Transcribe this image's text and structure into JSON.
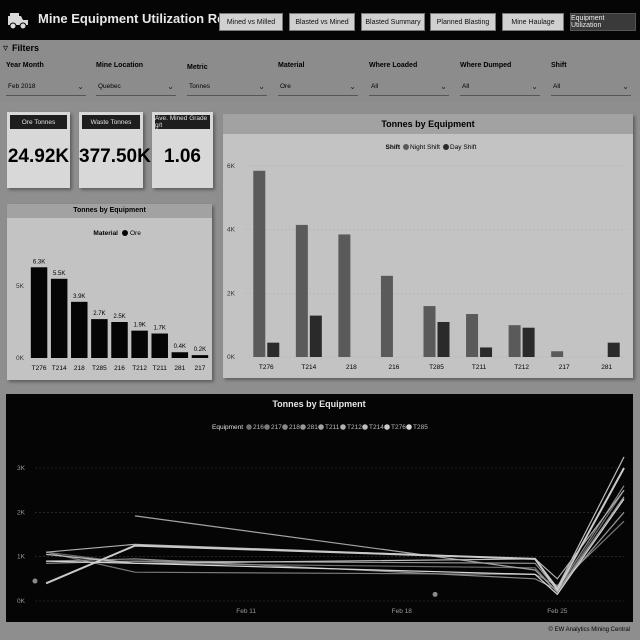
{
  "header": {
    "title": "Mine Equipment Utilization Report",
    "nav": [
      {
        "label": "Mined vs Milled",
        "active": false
      },
      {
        "label": "Blasted vs Mined",
        "active": false
      },
      {
        "label": "Blasted Summary",
        "active": false
      },
      {
        "label": "Planned Blasting",
        "active": false
      },
      {
        "label": "Mine Haulage",
        "active": false
      },
      {
        "label": "Equipment Utilization",
        "active": true
      }
    ]
  },
  "filters": {
    "title": "Filters",
    "items": [
      {
        "label": "Year Month",
        "value": "Feb 2018"
      },
      {
        "label": "Mine Location",
        "value": "Quebec"
      },
      {
        "label": "Metric",
        "value": "Tonnes"
      },
      {
        "label": "Material",
        "value": "Ore"
      },
      {
        "label": "Where Loaded",
        "value": "All"
      },
      {
        "label": "Where Dumped",
        "value": "All"
      },
      {
        "label": "Shift",
        "value": "All"
      }
    ]
  },
  "kpis": [
    {
      "title": "Ore Tonnes",
      "value": "24.92K"
    },
    {
      "title": "Waste Tonnes",
      "value": "377.50K"
    },
    {
      "title": "Ave. Mined Grade g/t",
      "value": "1.06"
    }
  ],
  "footer": "© EW Analytics Mining Central",
  "colors": {
    "ore": "#050505",
    "night_shift": "#5a5a5a",
    "day_shift": "#2a2a2a",
    "header_bg": "#050505",
    "page_bg": "#8e8e8e"
  },
  "chart_data": [
    {
      "id": "ore_by_equipment",
      "type": "bar",
      "title": "Tonnes by Equipment",
      "legend_title": "Material",
      "series": [
        {
          "name": "Ore",
          "values": [
            6.3,
            5.5,
            3.9,
            2.7,
            2.5,
            1.9,
            1.7,
            0.4,
            0.2
          ]
        }
      ],
      "categories": [
        "T276",
        "T214",
        "218",
        "T285",
        "216",
        "T212",
        "T211",
        "281",
        "217"
      ],
      "data_labels": [
        "6.3K",
        "5.5K",
        "3.9K",
        "2.7K",
        "2.5K",
        "1.9K",
        "1.7K",
        "0.4K",
        "0.2K"
      ],
      "yticks": [
        0,
        5
      ],
      "ytick_labels": [
        "0K",
        "5K"
      ],
      "ylim": [
        0,
        7.5
      ],
      "unit": "K tonnes"
    },
    {
      "id": "shift_by_equipment",
      "type": "bar",
      "title": "Tonnes by Equipment",
      "legend_title": "Shift",
      "categories": [
        "T276",
        "T214",
        "218",
        "216",
        "T285",
        "T211",
        "T212",
        "217",
        "281"
      ],
      "series": [
        {
          "name": "Night Shift",
          "values": [
            5.85,
            4.15,
            3.85,
            2.55,
            1.6,
            1.35,
            1.0,
            0.18,
            0
          ]
        },
        {
          "name": "Day Shift",
          "values": [
            0.45,
            1.3,
            0,
            0,
            1.1,
            0.3,
            0.92,
            0,
            0.45
          ]
        }
      ],
      "yticks": [
        0,
        2,
        4,
        6
      ],
      "ytick_labels": [
        "0K",
        "2K",
        "4K",
        "6K"
      ],
      "ylim": [
        0,
        6.2
      ],
      "unit": "K tonnes"
    },
    {
      "id": "tonnes_over_time",
      "type": "line",
      "title": "Tonnes by Equipment",
      "legend_title": "Equipment",
      "x": [
        2,
        6,
        24,
        25,
        28
      ],
      "xticks": [
        11,
        18,
        25
      ],
      "xtick_labels": [
        "Feb 11",
        "Feb 18",
        "Feb 25"
      ],
      "xlim": [
        1.5,
        28
      ],
      "yticks": [
        0,
        1,
        2,
        3
      ],
      "ytick_labels": [
        "0K",
        "1K",
        "2K",
        "3K"
      ],
      "ylim": [
        0,
        3.3
      ],
      "series": [
        {
          "name": "216",
          "values": [
            1.1,
            0.85,
            0.75,
            0.2,
            2.5
          ]
        },
        {
          "name": "217",
          "values": [
            1.1,
            0.65,
            0.6,
            0.35,
            1.8
          ]
        },
        {
          "name": "218",
          "values": [
            0.9,
            0.95,
            0.5,
            0.25,
            2.6
          ]
        },
        {
          "name": "281",
          "values": [
            0.85,
            0.9,
            0.85,
            0.25,
            2.0
          ]
        },
        {
          "name": "T211",
          "values": [
            null,
            1.92,
            0.7,
            0.2,
            2.35
          ]
        },
        {
          "name": "T212",
          "values": [
            1.1,
            1.28,
            0.95,
            0.5,
            2.5
          ]
        },
        {
          "name": "T214",
          "values": [
            1.05,
            0.85,
            0.95,
            0.3,
            3.25
          ]
        },
        {
          "name": "T276",
          "values": [
            0.4,
            1.25,
            0.95,
            0.25,
            3.0
          ]
        },
        {
          "name": "T285",
          "values": [
            0.9,
            0.85,
            0.6,
            0.15,
            2.3
          ]
        }
      ],
      "markers": [
        {
          "x": 1.5,
          "value": 0.45
        },
        {
          "x": 19.5,
          "value": 0.15
        }
      ]
    }
  ]
}
